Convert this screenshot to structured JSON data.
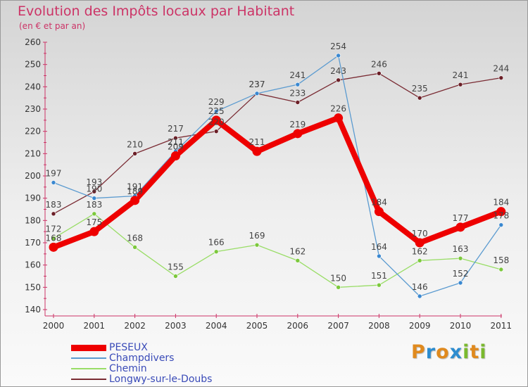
{
  "title": "Evolution des Impôts locaux par Habitant",
  "subtitle": "(en € et par an)",
  "logo": {
    "letters": [
      "P",
      "r",
      "o",
      "x",
      "i",
      "t",
      "i"
    ],
    "colors": [
      "#e08a1e",
      "#2d8ccf",
      "#e08a1e",
      "#2d8ccf",
      "#7ab92e",
      "#e08a1e",
      "#7ab92e"
    ]
  },
  "chart_data": {
    "type": "line",
    "x": [
      "2000",
      "2001",
      "2002",
      "2003",
      "2004",
      "2005",
      "2006",
      "2007",
      "2008",
      "2009",
      "2010",
      "2011"
    ],
    "ylim": [
      140,
      260
    ],
    "yticks": [
      140,
      150,
      160,
      170,
      180,
      190,
      200,
      210,
      220,
      230,
      240,
      250,
      260
    ],
    "grid": false,
    "legend_position": "bottom-left",
    "series": [
      {
        "name": "Longwy-sur-le-Doubs",
        "color": "#7a2b33",
        "marker": "#6b1f27",
        "values": [
          183,
          193,
          210,
          217,
          220,
          237,
          233,
          243,
          246,
          235,
          241,
          244
        ]
      },
      {
        "name": "Chemin",
        "color": "#99dd66",
        "marker": "#7cc83c",
        "values": [
          172,
          183,
          168,
          155,
          166,
          169,
          162,
          150,
          151,
          162,
          163,
          158
        ]
      },
      {
        "name": "Champdivers",
        "color": "#5b9bd0",
        "marker": "#3a88d0",
        "values": [
          197,
          190,
          191,
          211,
          229,
          237,
          241,
          254,
          164,
          146,
          152,
          178
        ]
      },
      {
        "name": "PESEUX",
        "color": "#ee0000",
        "marker": "#ee0000",
        "values": [
          168,
          175,
          189,
          209,
          225,
          211,
          219,
          226,
          184,
          170,
          177,
          184
        ]
      }
    ]
  },
  "legend": [
    {
      "name": "PESEUX",
      "color": "#ee0000"
    },
    {
      "name": "Champdivers",
      "color": "#5b9bd0"
    },
    {
      "name": "Chemin",
      "color": "#99dd66"
    },
    {
      "name": "Longwy-sur-le-Doubs",
      "color": "#7a2b33"
    }
  ]
}
